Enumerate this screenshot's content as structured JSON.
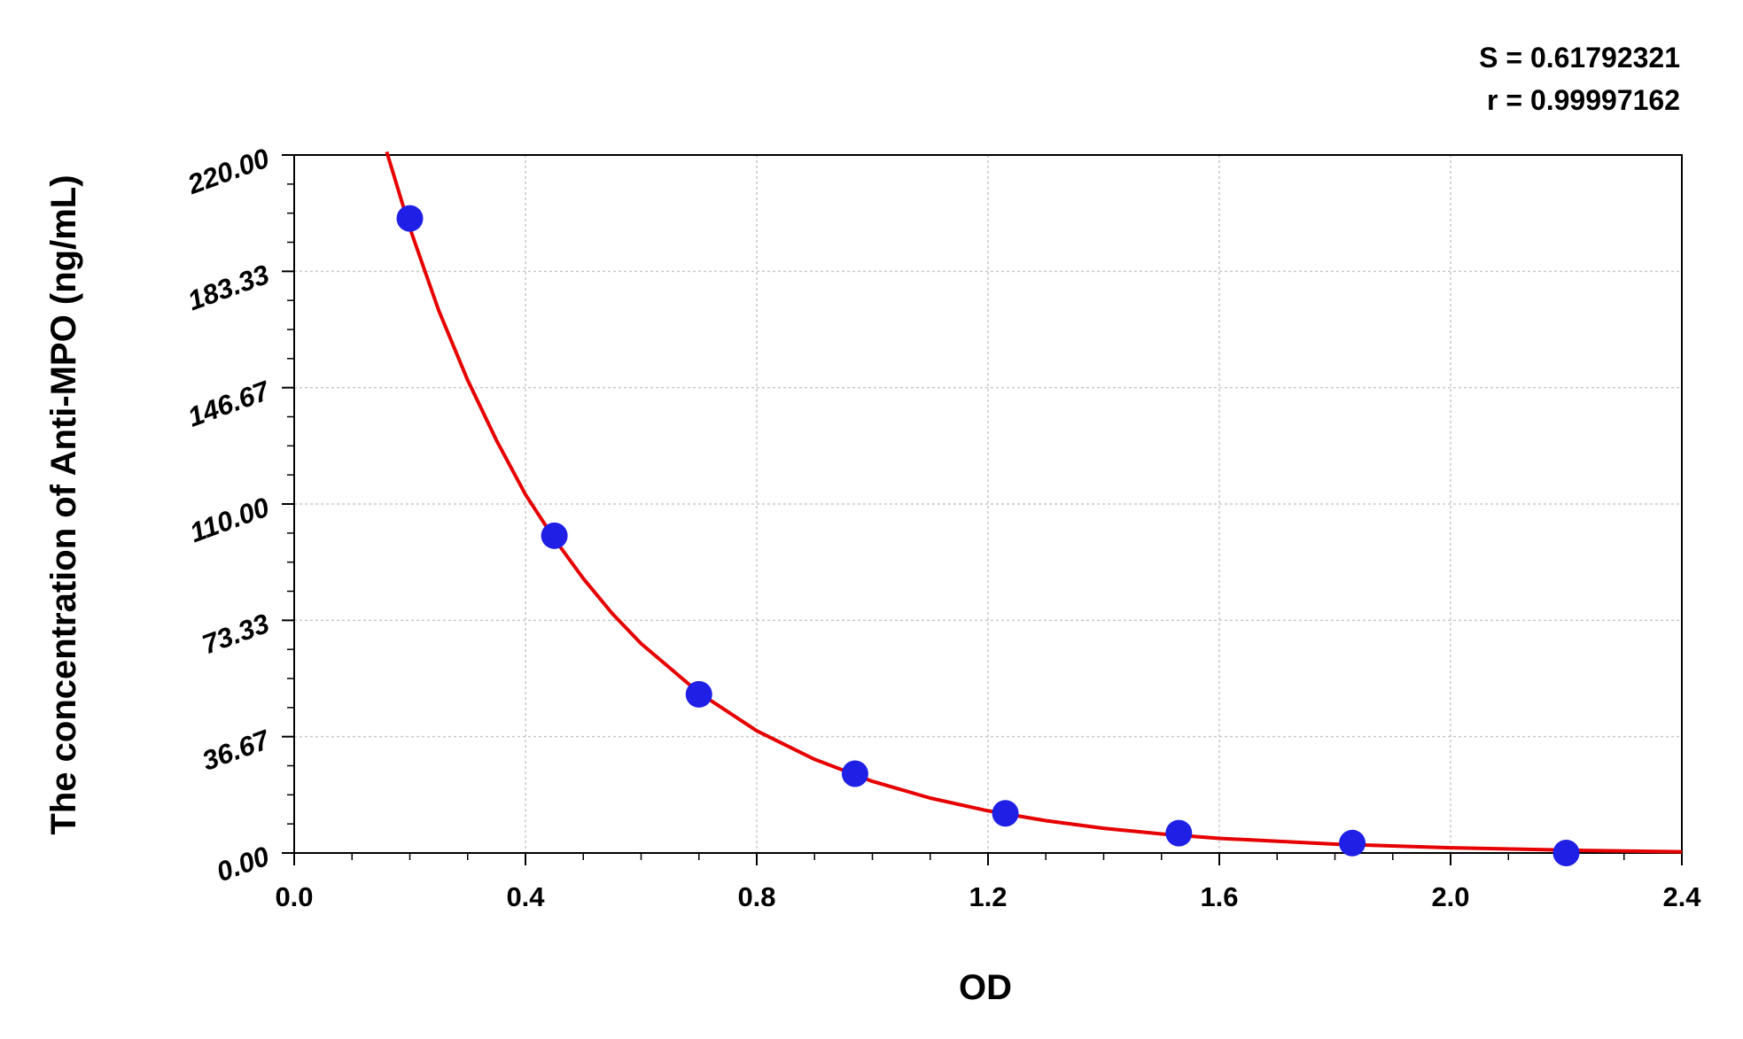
{
  "chart_data": {
    "type": "scatter",
    "xlabel": "OD",
    "ylabel": "The concentration of Anti-MPO (ng/mL)",
    "xlim": [
      0.0,
      2.4
    ],
    "ylim": [
      0.0,
      220.0
    ],
    "x_ticks": [
      "0.0",
      "0.4",
      "0.8",
      "1.2",
      "1.6",
      "2.0",
      "2.4"
    ],
    "y_ticks": [
      "0.00",
      "36.67",
      "73.33",
      "110.00",
      "146.67",
      "183.33",
      "220.00"
    ],
    "grid": true,
    "stats": [
      "S = 0.61792321",
      "r = 0.99997162"
    ],
    "series": [
      {
        "kind": "points",
        "color": "#1f1fe6",
        "x": [
          0.2,
          0.45,
          0.7,
          0.97,
          1.23,
          1.53,
          1.83,
          2.2
        ],
        "y": [
          200.0,
          100.0,
          50.0,
          25.0,
          12.5,
          6.25,
          3.125,
          0.0
        ]
      },
      {
        "kind": "fit-curve",
        "color": "#e60000",
        "x": [
          0.16,
          0.2,
          0.25,
          0.3,
          0.35,
          0.4,
          0.45,
          0.5,
          0.55,
          0.6,
          0.7,
          0.8,
          0.9,
          1.0,
          1.1,
          1.2,
          1.3,
          1.4,
          1.5,
          1.6,
          1.8,
          2.0,
          2.2,
          2.4
        ],
        "y": [
          221.0,
          197.0,
          171.0,
          149.0,
          130.0,
          113.0,
          99.0,
          86.5,
          75.5,
          66.0,
          50.5,
          38.5,
          29.5,
          22.6,
          17.3,
          13.3,
          10.2,
          7.8,
          6.0,
          4.6,
          2.8,
          1.65,
          0.9,
          0.4
        ]
      }
    ]
  }
}
